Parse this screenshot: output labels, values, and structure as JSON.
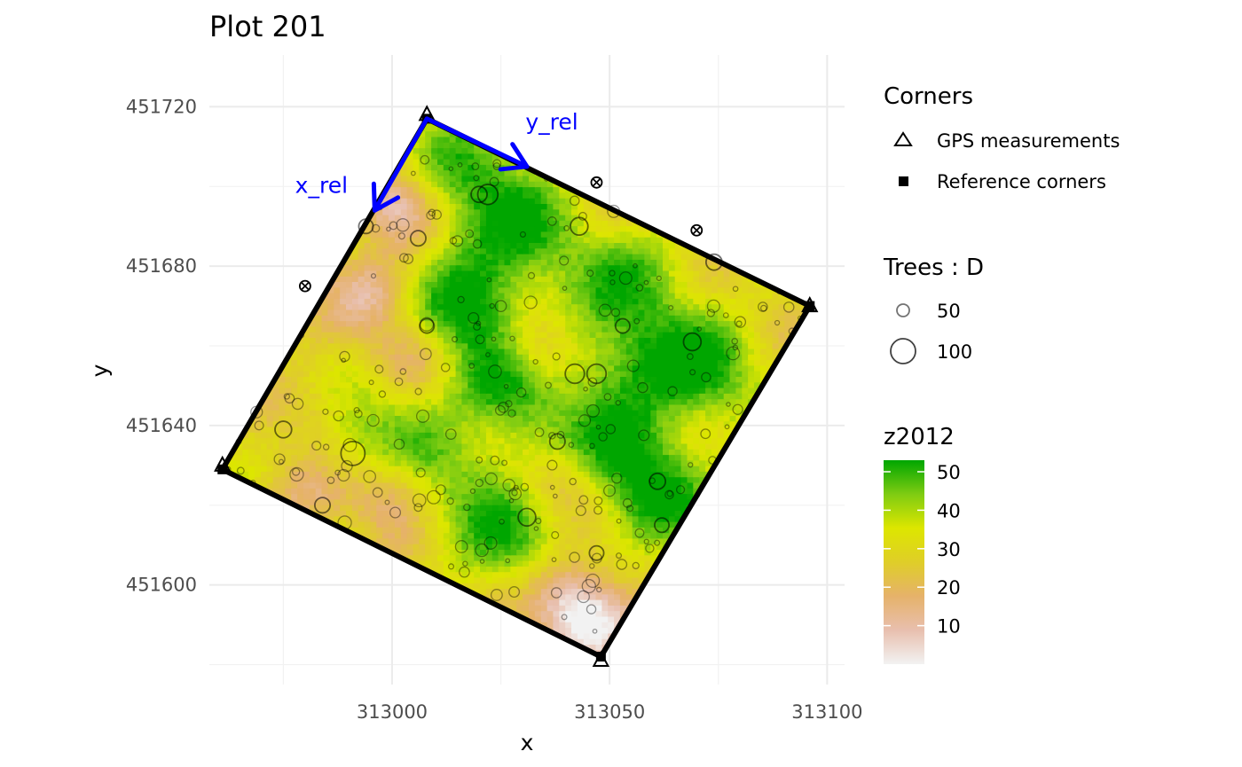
{
  "chart_data": {
    "type": "raster-map",
    "title": "Plot 201",
    "xlabel": "x",
    "ylabel": "y",
    "xlim": [
      312958,
      313104
    ],
    "ylim": [
      451575,
      451733
    ],
    "x_ticks": [
      313000,
      313050,
      313100
    ],
    "y_ticks": [
      451600,
      451640,
      451680,
      451720
    ],
    "grid": true,
    "reference_corners": [
      {
        "x": 313008,
        "y": 451717
      },
      {
        "x": 313096,
        "y": 451670
      },
      {
        "x": 313048,
        "y": 451582
      },
      {
        "x": 312961,
        "y": 451629
      }
    ],
    "gps_measurements": [
      {
        "x": 313008,
        "y": 451718
      },
      {
        "x": 313096,
        "y": 451670
      },
      {
        "x": 313048,
        "y": 451581
      },
      {
        "x": 312961,
        "y": 451630
      }
    ],
    "outside_points": [
      {
        "x": 312980,
        "y": 451675
      },
      {
        "x": 313047,
        "y": 451701
      },
      {
        "x": 313070,
        "y": 451689
      }
    ],
    "arrows": [
      {
        "label": "x_rel",
        "from": {
          "x": 313008,
          "y": 451717
        },
        "to": {
          "x": 312996,
          "y": 451694
        }
      },
      {
        "label": "y_rel",
        "from": {
          "x": 313008,
          "y": 451717
        },
        "to": {
          "x": 313031,
          "y": 451705
        }
      }
    ],
    "arrow_color": "#0000ff",
    "raster": {
      "variable": "z2012",
      "range": [
        0,
        53
      ],
      "ticks": [
        10,
        20,
        30,
        40,
        50
      ],
      "colors": [
        "#f2f2f2",
        "#e8bfae",
        "#e6b26a",
        "#dfce28",
        "#dde600",
        "#7fcc12",
        "#00a600"
      ],
      "mean_height": 28,
      "canopy_patches": [
        {
          "u": 0.15,
          "v": 0.1,
          "h": 22
        },
        {
          "u": 0.35,
          "v": 0.16,
          "h": 18
        },
        {
          "u": 0.3,
          "v": 0.36,
          "h": 20
        },
        {
          "u": 0.45,
          "v": 0.46,
          "h": 22
        },
        {
          "u": 0.62,
          "v": 0.13,
          "h": 16
        },
        {
          "u": 0.67,
          "v": 0.33,
          "h": 18
        },
        {
          "u": 0.86,
          "v": 0.26,
          "h": 22
        },
        {
          "u": 0.8,
          "v": 0.52,
          "h": 18
        },
        {
          "u": 0.92,
          "v": 0.6,
          "h": 18
        },
        {
          "u": 0.55,
          "v": 0.62,
          "h": 16
        },
        {
          "u": 0.34,
          "v": 0.66,
          "h": 12
        },
        {
          "u": 0.22,
          "v": 0.8,
          "h": 14
        },
        {
          "u": 0.55,
          "v": 0.82,
          "h": 14
        },
        {
          "u": 0.72,
          "v": 0.86,
          "h": 12
        }
      ],
      "gaps": [
        {
          "u": 0.04,
          "v": 0.23,
          "h": -24
        },
        {
          "u": 0.1,
          "v": 0.44,
          "h": -14
        },
        {
          "u": 0.25,
          "v": 0.55,
          "h": -14
        },
        {
          "u": 0.47,
          "v": 0.63,
          "h": -10
        },
        {
          "u": 0.37,
          "v": 0.87,
          "h": -16
        },
        {
          "u": 0.12,
          "v": 0.77,
          "h": -12
        },
        {
          "u": 0.7,
          "v": 0.66,
          "h": -14
        },
        {
          "u": 0.84,
          "v": 0.9,
          "h": -20
        },
        {
          "u": 0.49,
          "v": 0.4,
          "h": -24
        },
        {
          "u": 0.93,
          "v": 0.94,
          "h": -30
        },
        {
          "u": 0.2,
          "v": 0.97,
          "h": -12
        }
      ]
    },
    "trees": {
      "variable": "D",
      "legend_values": [
        50,
        100
      ],
      "large": [
        {
          "x": 313022,
          "y": 451698,
          "d": 63
        },
        {
          "x": 313042,
          "y": 451653,
          "d": 60
        },
        {
          "x": 313047,
          "y": 451653,
          "d": 60
        },
        {
          "x": 312991,
          "y": 451633,
          "d": 75
        },
        {
          "x": 313031,
          "y": 451617,
          "d": 55
        },
        {
          "x": 313069,
          "y": 451661,
          "d": 55
        },
        {
          "x": 313074,
          "y": 451681,
          "d": 50
        },
        {
          "x": 312975,
          "y": 451639,
          "d": 52
        },
        {
          "x": 313043,
          "y": 451690,
          "d": 55
        },
        {
          "x": 313038,
          "y": 451636,
          "d": 48
        },
        {
          "x": 313061,
          "y": 451626,
          "d": 50
        },
        {
          "x": 313006,
          "y": 451687,
          "d": 48
        },
        {
          "x": 312994,
          "y": 451690,
          "d": 45
        },
        {
          "x": 313020,
          "y": 451698,
          "d": 50
        },
        {
          "x": 312984,
          "y": 451620,
          "d": 48
        },
        {
          "x": 313053,
          "y": 451665,
          "d": 45
        },
        {
          "x": 313008,
          "y": 451665,
          "d": 45
        },
        {
          "x": 313062,
          "y": 451615,
          "d": 45
        },
        {
          "x": 313047,
          "y": 451608,
          "d": 45
        }
      ],
      "small_count": 230,
      "small_d_range": [
        12,
        42
      ]
    }
  },
  "legend": {
    "corners_title": "Corners",
    "gps_label": "GPS measurements",
    "ref_label": "Reference corners",
    "trees_title": "Trees : D",
    "height_title": "z2012"
  }
}
